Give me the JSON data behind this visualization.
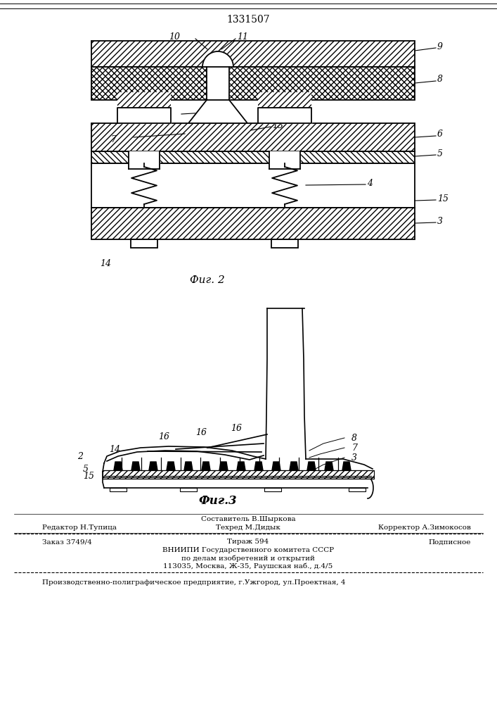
{
  "title": "1331507",
  "fig2_label": "Фиг. 2",
  "fig3_label": "Фиг.3",
  "editor_line": "Редактор Н.Тупица",
  "composer_line1": "Составитель В.Шыркова",
  "composer_line2": "Техред М.Дидык",
  "corrector_line": "Корректор А.Зимокосов",
  "order_line": "Заказ 3749/4",
  "tirage_line": "Тираж 594",
  "podpisnoe_line": "Подписное",
  "vnipi_line1": "ВНИИПИ Государственного комитета СССР",
  "vnipi_line2": "по делам изобретений и открытий",
  "vnipi_line3": "113035, Москва, Ж-35, Раушская наб., д.4/5",
  "factory_line": "Производственно-полиграфическое предприятие, г.Ужгород, ул.Проектная, 4",
  "bg_color": "#ffffff",
  "line_color": "#000000"
}
